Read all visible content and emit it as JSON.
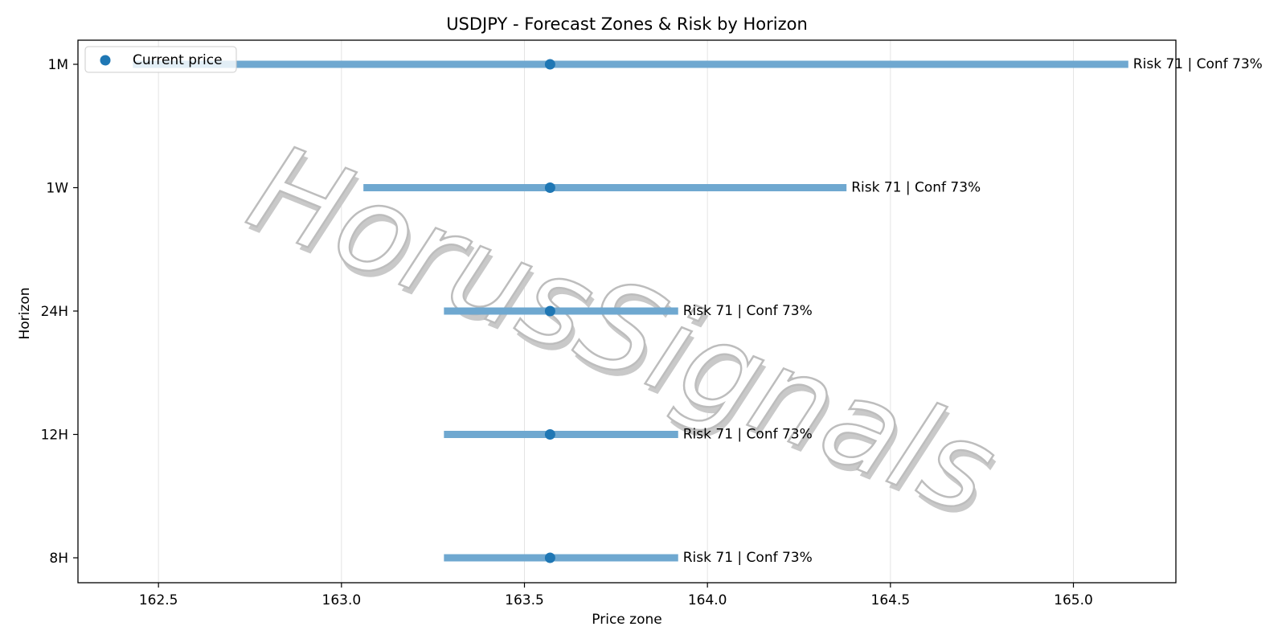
{
  "chart_data": {
    "type": "range",
    "title": "USDJPY - Forecast Zones & Risk by Horizon",
    "xlabel": "Price zone",
    "ylabel": "Horizon",
    "xlim": [
      162.28,
      165.28
    ],
    "xticks": [
      162.5,
      163.0,
      163.5,
      164.0,
      164.5,
      165.0
    ],
    "xtick_labels": [
      "162.5",
      "163.0",
      "163.5",
      "164.0",
      "164.5",
      "165.0"
    ],
    "grid": "vertical",
    "legend": {
      "placement": "top-left",
      "entries": [
        "Current price"
      ]
    },
    "colors": {
      "bar": "#6fa8d0",
      "point": "#1f77b4",
      "grid": "#e4e4e4"
    },
    "watermark": "HorusSignals",
    "rows": [
      {
        "horizon": "1M",
        "low": 162.43,
        "high": 165.15,
        "current": 163.57,
        "label": "Risk 71 | Conf 73%"
      },
      {
        "horizon": "1W",
        "low": 163.06,
        "high": 164.38,
        "current": 163.57,
        "label": "Risk 71 | Conf 73%"
      },
      {
        "horizon": "24H",
        "low": 163.28,
        "high": 163.92,
        "current": 163.57,
        "label": "Risk 71 | Conf 73%"
      },
      {
        "horizon": "12H",
        "low": 163.28,
        "high": 163.92,
        "current": 163.57,
        "label": "Risk 71 | Conf 73%"
      },
      {
        "horizon": "8H",
        "low": 163.28,
        "high": 163.92,
        "current": 163.57,
        "label": "Risk 71 | Conf 73%"
      }
    ]
  }
}
